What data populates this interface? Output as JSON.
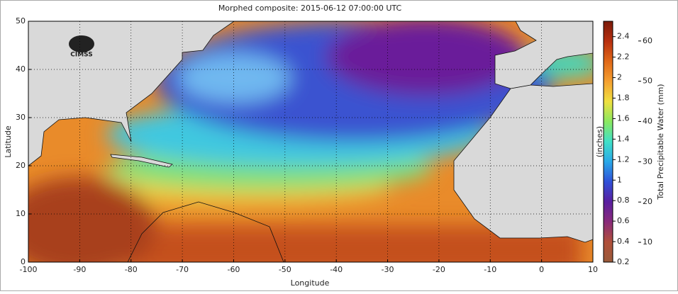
{
  "chart_data": {
    "type": "map",
    "title": "Morphed composite: 2015-06-12 07:00:00 UTC",
    "xlabel": "Longitude",
    "ylabel": "Latitude",
    "logo_text": "CIMSS",
    "xlim": [
      -100,
      10
    ],
    "xticks": [
      -100,
      -90,
      -80,
      -70,
      -60,
      -50,
      -40,
      -30,
      -20,
      -10,
      0,
      10
    ],
    "ylim": [
      0,
      50
    ],
    "yticks": [
      0,
      10,
      20,
      30,
      40,
      50
    ],
    "grid": true,
    "colorbar": {
      "label": "Total Precipitable Water (mm)",
      "inner_label": "(inches)",
      "lim_mm": [
        5.08,
        64.9
      ],
      "ticks_mm": [
        10,
        20,
        30,
        40,
        50,
        60
      ],
      "lim_in": [
        0.2,
        2.55
      ],
      "ticks_in": [
        0.2,
        0.4,
        0.6,
        0.8,
        1,
        1.2,
        1.4,
        1.6,
        1.8,
        2,
        2.2,
        2.4
      ],
      "colors": [
        "#9a5a3a",
        "#b0503a",
        "#8a2a7a",
        "#5a1fa0",
        "#3050d8",
        "#2aa8e8",
        "#40e0c8",
        "#8ae860",
        "#f0e040",
        "#f5a030",
        "#e06818",
        "#b83010",
        "#7a1a0a"
      ]
    }
  }
}
